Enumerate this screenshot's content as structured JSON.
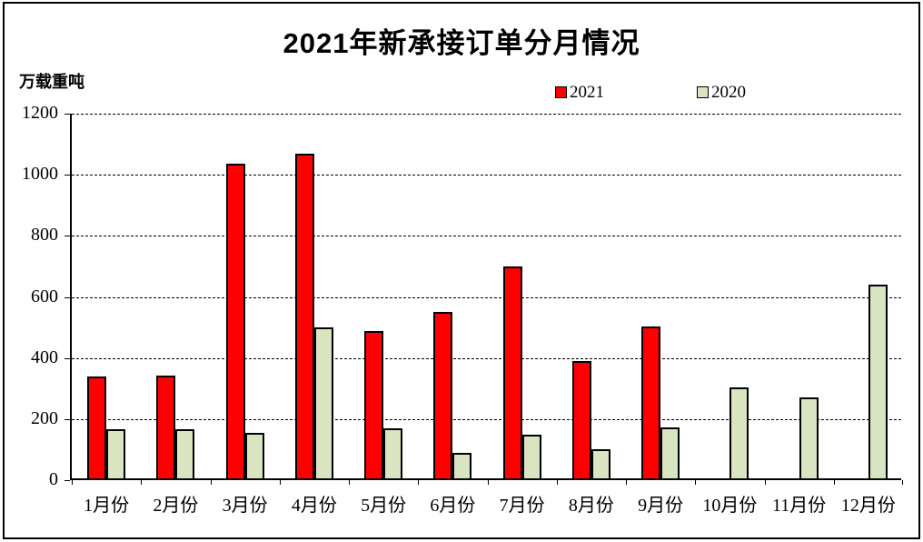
{
  "page": {
    "background": "#ffffff",
    "border_color": "#000000"
  },
  "chart_data": {
    "type": "bar",
    "title": "2021年新承接订单分月情况",
    "ylabel": "万载重吨",
    "xlabel": "",
    "categories": [
      "1月份",
      "2月份",
      "3月份",
      "4月份",
      "5月份",
      "6月份",
      "7月份",
      "8月份",
      "9月份",
      "10月份",
      "11月份",
      "12月份"
    ],
    "series": [
      {
        "name": "2021",
        "color": "#ff0000",
        "values": [
          340,
          342,
          1037,
          1068,
          489,
          550,
          699,
          390,
          503,
          null,
          null,
          null
        ]
      },
      {
        "name": "2020",
        "color": "#d9e5c1",
        "values": [
          166,
          166,
          155,
          501,
          169,
          89,
          150,
          100,
          172,
          303,
          270,
          639
        ]
      }
    ],
    "ylim": [
      0,
      1200
    ],
    "yticks": [
      0,
      200,
      400,
      600,
      800,
      1000,
      1200
    ],
    "grid": "dashed-horizontal",
    "legend_position": "top-center",
    "bar_outline_color": "#000000",
    "axis_color": "#000000"
  }
}
